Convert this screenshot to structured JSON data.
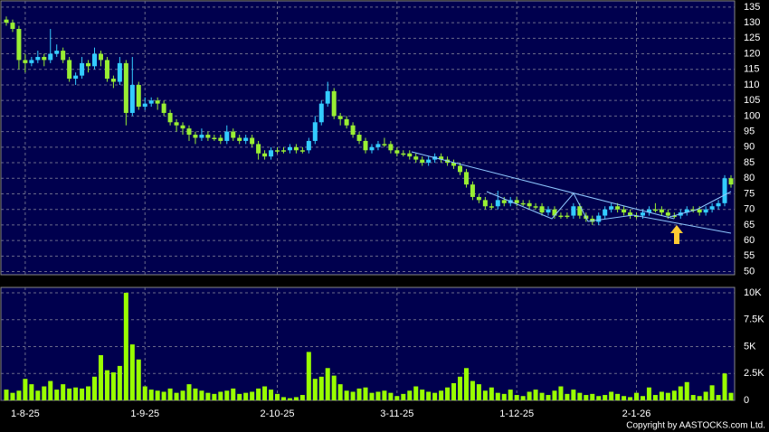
{
  "chart_data": {
    "type": "candlestick",
    "categories": [
      null,
      null,
      null,
      "1-8-25",
      null,
      null,
      null,
      null,
      null,
      null,
      null,
      null,
      null,
      null,
      null,
      null,
      null,
      null,
      null,
      null,
      null,
      null,
      "1-9-25",
      null,
      null,
      null,
      null,
      null,
      null,
      null,
      null,
      null,
      null,
      null,
      null,
      null,
      null,
      null,
      null,
      null,
      null,
      null,
      null,
      "2-10-25",
      null,
      null,
      null,
      null,
      null,
      null,
      null,
      null,
      null,
      null,
      null,
      null,
      null,
      null,
      null,
      null,
      null,
      null,
      "3-11-25",
      null,
      null,
      null,
      null,
      null,
      null,
      null,
      null,
      null,
      null,
      null,
      null,
      null,
      null,
      null,
      null,
      null,
      null,
      "1-12-25",
      null,
      null,
      null,
      null,
      null,
      null,
      null,
      null,
      null,
      null,
      null,
      null,
      null,
      null,
      null,
      null,
      null,
      null,
      "2-1-26",
      null,
      null,
      null,
      null,
      null,
      null,
      null,
      null,
      null,
      null,
      null,
      null,
      null,
      null,
      null
    ],
    "open": [
      131,
      130,
      128,
      118,
      117,
      118,
      119,
      118,
      120,
      121,
      118,
      112,
      113,
      117,
      116,
      120,
      118,
      112,
      111,
      117,
      101,
      110,
      103,
      104,
      105,
      104,
      101,
      98,
      97,
      96,
      94,
      93,
      94,
      93,
      93,
      92,
      95,
      93,
      92,
      93,
      91,
      88,
      87,
      89,
      89,
      89,
      90,
      89,
      89,
      92,
      98,
      104,
      108,
      100,
      99,
      97,
      94,
      92,
      89,
      90,
      91,
      91,
      89,
      88,
      88,
      87,
      86,
      85,
      86,
      87,
      86,
      85,
      84,
      82,
      78,
      74,
      73,
      71,
      71,
      73,
      72,
      73,
      72,
      72,
      71,
      71,
      69,
      70,
      68,
      68,
      68,
      71,
      68,
      67,
      66,
      68,
      70,
      71,
      70,
      69,
      68,
      68,
      69,
      70,
      70,
      69,
      68,
      68,
      69,
      70,
      70,
      69,
      70,
      71,
      72,
      80
    ],
    "high": [
      132,
      131,
      129,
      120,
      119,
      121,
      120,
      128,
      123,
      122,
      119,
      114,
      119,
      118,
      122,
      121,
      119,
      113,
      119,
      118,
      119,
      111,
      106,
      106,
      106,
      105,
      102,
      99,
      98,
      97,
      95,
      96,
      95,
      94,
      94,
      97,
      96,
      94,
      94,
      94,
      92,
      89,
      90,
      90,
      90,
      91,
      91,
      90,
      93,
      100,
      105,
      111,
      109,
      101,
      100,
      98,
      95,
      93,
      91,
      92,
      93,
      92,
      90,
      89,
      89,
      88,
      87,
      87,
      88,
      88,
      87,
      86,
      85,
      83,
      79,
      75,
      74,
      72,
      76,
      74,
      74,
      74,
      73,
      73,
      72,
      72,
      71,
      71,
      69,
      69,
      72,
      72,
      69,
      68,
      69,
      71,
      72,
      72,
      71,
      70,
      69,
      70,
      71,
      72,
      71,
      70,
      69,
      70,
      71,
      71,
      71,
      71,
      72,
      73,
      81,
      81
    ],
    "low": [
      129,
      127,
      115,
      114,
      116,
      117,
      116,
      117,
      119,
      117,
      111,
      110,
      112,
      114,
      115,
      116,
      111,
      109,
      110,
      97,
      100,
      102,
      102,
      103,
      102,
      100,
      97,
      95,
      94,
      92,
      91,
      92,
      92,
      92,
      91,
      91,
      92,
      91,
      91,
      90,
      86,
      86,
      86,
      88,
      88,
      88,
      88,
      88,
      88,
      91,
      97,
      103,
      99,
      97,
      96,
      93,
      91,
      88,
      88,
      89,
      90,
      88,
      87,
      87,
      86,
      85,
      84,
      84,
      85,
      85,
      84,
      83,
      81,
      77,
      73,
      72,
      70,
      70,
      70,
      71,
      71,
      71,
      71,
      70,
      70,
      68,
      68,
      67,
      67,
      67,
      67,
      67,
      66,
      65,
      65,
      67,
      69,
      69,
      68,
      67,
      67,
      67,
      68,
      69,
      68,
      67,
      67,
      67,
      68,
      69,
      68,
      68,
      69,
      70,
      71,
      77
    ],
    "close": [
      130,
      128,
      118,
      117,
      118,
      119,
      118,
      120,
      121,
      118,
      112,
      113,
      117,
      116,
      120,
      118,
      112,
      111,
      117,
      101,
      110,
      103,
      104,
      105,
      104,
      101,
      98,
      97,
      96,
      94,
      93,
      94,
      93,
      93,
      92,
      95,
      93,
      92,
      93,
      91,
      88,
      87,
      89,
      89,
      89,
      90,
      89,
      89,
      92,
      98,
      104,
      108,
      100,
      99,
      97,
      94,
      92,
      89,
      90,
      91,
      91,
      89,
      88,
      88,
      87,
      86,
      85,
      86,
      87,
      86,
      85,
      84,
      82,
      78,
      74,
      73,
      71,
      71,
      73,
      72,
      73,
      72,
      72,
      71,
      71,
      69,
      70,
      68,
      68,
      68,
      71,
      68,
      67,
      66,
      68,
      70,
      71,
      70,
      69,
      68,
      68,
      69,
      70,
      70,
      69,
      68,
      68,
      69,
      70,
      70,
      69,
      70,
      71,
      72,
      80,
      78
    ],
    "volume": [
      1000,
      700,
      900,
      2000,
      1500,
      900,
      1300,
      1800,
      1000,
      1500,
      1100,
      1200,
      1100,
      1300,
      2200,
      4200,
      2800,
      2600,
      3200,
      10000,
      5200,
      3800,
      1300,
      1000,
      900,
      800,
      1100,
      700,
      900,
      1500,
      1100,
      900,
      700,
      600,
      800,
      900,
      1100,
      600,
      700,
      800,
      1100,
      1300,
      1000,
      600,
      300,
      200,
      300,
      500,
      4500,
      2000,
      2200,
      3000,
      2300,
      1500,
      900,
      800,
      1100,
      1200,
      700,
      800,
      900,
      700,
      400,
      600,
      900,
      1300,
      1000,
      800,
      700,
      900,
      1200,
      1600,
      2200,
      3000,
      1800,
      1500,
      900,
      1200,
      700,
      600,
      1000,
      500,
      400,
      800,
      1000,
      700,
      500,
      900,
      1300,
      600,
      1000,
      700,
      500,
      600,
      400,
      500,
      800,
      600,
      400,
      300,
      700,
      400,
      1200,
      500,
      800,
      700,
      900,
      1300,
      1700,
      500,
      400,
      800,
      1400,
      500,
      2500,
      700
    ],
    "up_color": "#33ccff",
    "down_color": "#99ee33",
    "volume_color": "#99ff00",
    "ylim": [
      49,
      137
    ],
    "yticks": [
      135,
      130,
      125,
      120,
      115,
      110,
      105,
      100,
      95,
      90,
      85,
      80,
      75,
      70,
      65,
      60,
      55,
      50
    ],
    "y2lim": [
      0,
      10500
    ],
    "y2ticks": [
      0,
      {
        "value": 2500,
        "label": "2.5K"
      },
      {
        "value": 5000,
        "label": "5K"
      },
      {
        "value": 7500,
        "label": "7.5K"
      },
      {
        "value": 10000,
        "label": "10K"
      }
    ],
    "grid": true,
    "copyright": "Copyright by AASTOCKS.com Ltd."
  }
}
